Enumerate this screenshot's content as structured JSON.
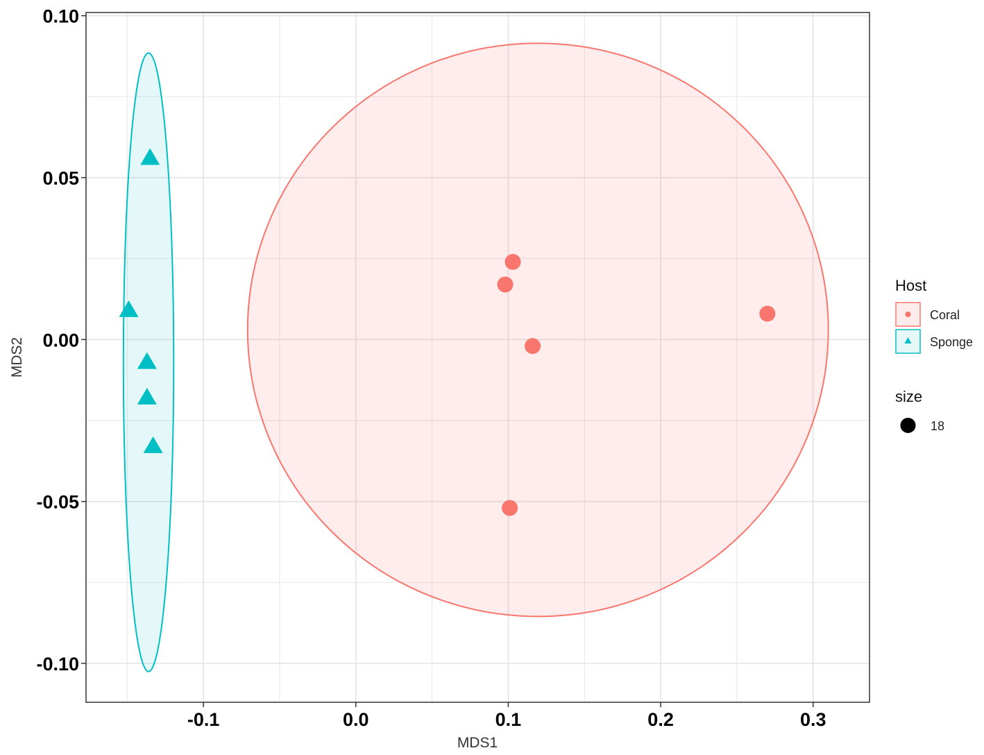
{
  "chart_data": {
    "type": "scatter",
    "xlabel": "MDS1",
    "ylabel": "MDS2",
    "xlim": [
      -0.177,
      0.337
    ],
    "ylim": [
      -0.112,
      0.101
    ],
    "x_ticks": [
      -0.1,
      0.0,
      0.1,
      0.2,
      0.3
    ],
    "x_tick_labels": [
      "-0.1",
      "0.0",
      "0.1",
      "0.2",
      "0.3"
    ],
    "y_ticks": [
      -0.1,
      -0.05,
      0.0,
      0.05,
      0.1
    ],
    "y_tick_labels": [
      "-0.10",
      "-0.05",
      "0.00",
      "0.05",
      "0.10"
    ],
    "grid": true,
    "legend_placement": "right",
    "legends": [
      {
        "title": "Host",
        "items": [
          {
            "label": "Coral",
            "shape": "circle",
            "color": "#F8766D"
          },
          {
            "label": "Sponge",
            "shape": "triangle",
            "color": "#00BFC4"
          }
        ]
      },
      {
        "title": "size",
        "items": [
          {
            "label": "18",
            "shape": "circle",
            "color": "#000000"
          }
        ]
      }
    ],
    "series": [
      {
        "name": "Coral",
        "color": "#F8766D",
        "marker": "circle",
        "points": [
          {
            "x": 0.103,
            "y": 0.024
          },
          {
            "x": 0.098,
            "y": 0.017
          },
          {
            "x": 0.116,
            "y": -0.002
          },
          {
            "x": 0.101,
            "y": -0.052
          },
          {
            "x": 0.27,
            "y": 0.008
          }
        ],
        "ellipse": {
          "cx": 0.1195,
          "cy": 0.003,
          "rx": 0.1905,
          "ry": 0.0885
        }
      },
      {
        "name": "Sponge",
        "color": "#00BFC4",
        "marker": "triangle",
        "points": [
          {
            "x": -0.135,
            "y": 0.056
          },
          {
            "x": -0.149,
            "y": 0.009
          },
          {
            "x": -0.137,
            "y": -0.007
          },
          {
            "x": -0.137,
            "y": -0.018
          },
          {
            "x": -0.133,
            "y": -0.033
          }
        ],
        "ellipse": {
          "cx": -0.136,
          "cy": -0.007,
          "rx": 0.0165,
          "ry": 0.0955
        }
      }
    ]
  }
}
